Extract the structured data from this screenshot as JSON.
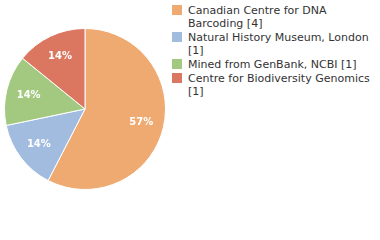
{
  "chart_data": {
    "type": "pie",
    "categories": [
      "Canadian Centre for DNA Barcoding [4]",
      "Natural History Museum, London [1]",
      "Mined from GenBank, NCBI [1]",
      "Centre for Biodiversity Genomics [1]"
    ],
    "values": [
      57,
      14,
      14,
      14
    ],
    "value_labels": [
      "57%",
      "14%",
      "14%",
      "14%"
    ],
    "colors": [
      "#efaa72",
      "#a2bce0",
      "#a2c97f",
      "#db7760"
    ],
    "data_labels": true,
    "legend": "right"
  }
}
